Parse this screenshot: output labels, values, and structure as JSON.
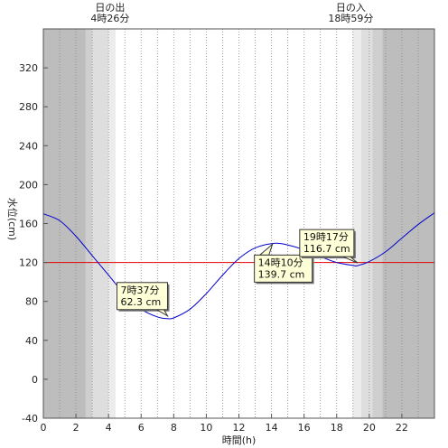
{
  "chart_data": {
    "type": "line",
    "xlabel": "時間(h)",
    "ylabel": "水位(cm)",
    "xlim": [
      0,
      24
    ],
    "ylim": [
      -40,
      360
    ],
    "x_ticks": [
      0,
      2,
      4,
      6,
      8,
      10,
      12,
      14,
      16,
      18,
      20,
      22
    ],
    "y_ticks": [
      -40,
      0,
      40,
      80,
      120,
      160,
      200,
      240,
      280,
      320
    ],
    "reference_line": {
      "y": 120,
      "color": "#e00000"
    },
    "line_color": "#0000cc",
    "sunrise": {
      "title": "日の出",
      "time": "4時26分",
      "hour": 4.43
    },
    "sunset": {
      "title": "日の入",
      "time": "18時59分",
      "hour": 18.98
    },
    "twilight_shading": [
      {
        "from": 0,
        "to": 2.6,
        "color": "#bdbdbd"
      },
      {
        "from": 2.6,
        "to": 3.0,
        "color": "#cfcfcf"
      },
      {
        "from": 3.0,
        "to": 4.0,
        "color": "#dedede"
      },
      {
        "from": 4.0,
        "to": 4.43,
        "color": "#ececec"
      },
      {
        "from": 18.98,
        "to": 19.5,
        "color": "#ececec"
      },
      {
        "from": 19.5,
        "to": 20.2,
        "color": "#dedede"
      },
      {
        "from": 20.2,
        "to": 20.8,
        "color": "#cfcfcf"
      },
      {
        "from": 20.8,
        "to": 24,
        "color": "#bdbdbd"
      }
    ],
    "series": [
      {
        "x": [
          0,
          1,
          2,
          3,
          4,
          5,
          6,
          7,
          7.62,
          8,
          9,
          10,
          11,
          12,
          13,
          14.17,
          15,
          16,
          17,
          18,
          19,
          19.28,
          20,
          21,
          22,
          23,
          24
        ],
        "values": [
          170,
          163,
          147,
          127,
          107,
          87,
          72,
          64,
          62.3,
          63,
          72,
          88,
          107,
          124,
          135,
          139.7,
          138,
          133,
          126,
          120,
          117,
          116.7,
          121,
          131,
          145,
          159,
          171
        ]
      }
    ],
    "annotations": [
      {
        "time": "7時37分",
        "value": "62.3 cm",
        "x": 7.62,
        "y": 62.3
      },
      {
        "time": "14時10分",
        "value": "139.7 cm",
        "x": 14.17,
        "y": 139.7
      },
      {
        "time": "19時17分",
        "value": "116.7 cm",
        "x": 19.28,
        "y": 116.7
      }
    ]
  }
}
